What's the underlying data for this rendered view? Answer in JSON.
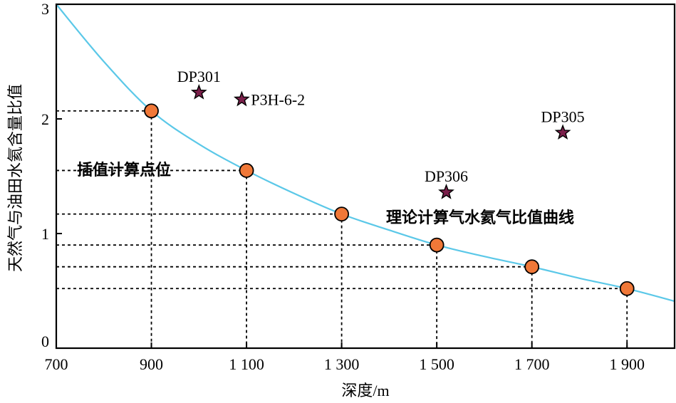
{
  "chart_data": {
    "type": "scatter",
    "xlabel": "深度/m",
    "ylabel": "天然气与油田水氦含量比值",
    "xlim": [
      700,
      2000
    ],
    "ylim": [
      0,
      3
    ],
    "x_ticks": [
      700,
      900,
      1100,
      1300,
      1500,
      1700,
      1900
    ],
    "x_tick_labels": [
      "700",
      "900",
      "1 100",
      "1 300",
      "1 500",
      "1 700",
      "1 900"
    ],
    "y_ticks": [
      0,
      1,
      2,
      3
    ],
    "y_tick_labels": [
      "0",
      "1",
      "2",
      "3"
    ],
    "grid": false,
    "curve": {
      "name": "理论计算气水氦气比值曲线",
      "color": "#5bc8e8",
      "x": [
        700,
        800,
        900,
        1000,
        1100,
        1200,
        1300,
        1400,
        1500,
        1600,
        1700,
        1800,
        1900,
        2000
      ],
      "y": [
        3.0,
        2.5,
        2.07,
        1.78,
        1.55,
        1.35,
        1.17,
        1.03,
        0.9,
        0.8,
        0.71,
        0.61,
        0.52,
        0.41
      ]
    },
    "interpolated_points": {
      "name": "插值计算点位",
      "color": "#f07838",
      "x": [
        900,
        1100,
        1300,
        1500,
        1700,
        1900
      ],
      "y": [
        2.07,
        1.55,
        1.17,
        0.9,
        0.71,
        0.52
      ]
    },
    "samples": [
      {
        "name": "DP301",
        "x": 1000,
        "y": 2.23,
        "label_pos": "above"
      },
      {
        "name": "P3H-6-2",
        "x": 1090,
        "y": 2.17,
        "label_pos": "right"
      },
      {
        "name": "DP306",
        "x": 1520,
        "y": 1.36,
        "label_pos": "above"
      },
      {
        "name": "DP305",
        "x": 1765,
        "y": 1.88,
        "label_pos": "above"
      }
    ],
    "sample_color": "#7a1f4a"
  }
}
